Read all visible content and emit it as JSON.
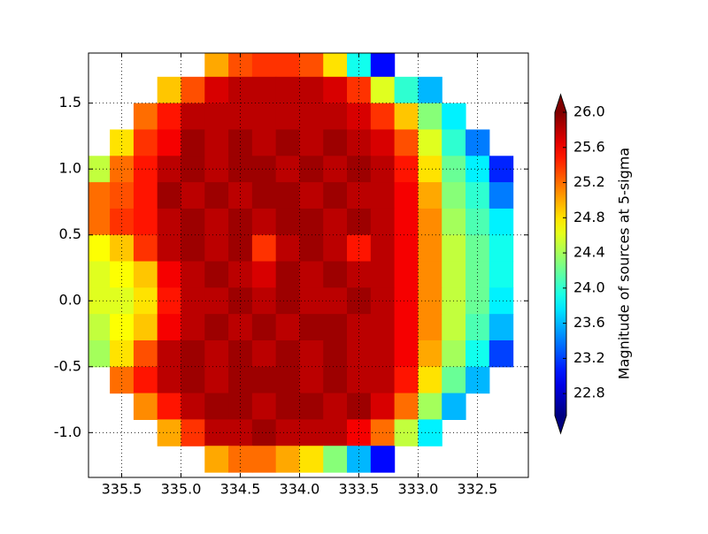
{
  "chart_data": {
    "type": "heatmap",
    "x": [
      335.7,
      335.5,
      335.3,
      335.1,
      334.9,
      334.7,
      334.5,
      334.3,
      334.1,
      333.9,
      333.7,
      333.5,
      333.3,
      333.1,
      332.9,
      332.7,
      332.5,
      332.3
    ],
    "y": [
      1.8,
      1.6,
      1.4,
      1.2,
      1.0,
      0.8,
      0.6,
      0.4,
      0.2,
      0.0,
      -0.2,
      -0.4,
      -0.6,
      -0.8,
      -1.0,
      -1.2
    ],
    "values": [
      [
        null,
        null,
        null,
        null,
        null,
        25.0,
        25.3,
        25.4,
        25.4,
        25.3,
        24.8,
        23.9,
        23.0,
        null,
        null,
        null,
        null,
        null
      ],
      [
        null,
        null,
        null,
        24.9,
        25.3,
        25.7,
        25.8,
        25.8,
        25.8,
        25.8,
        25.7,
        25.4,
        24.6,
        24.0,
        23.6,
        null,
        null,
        null
      ],
      [
        null,
        null,
        25.2,
        25.5,
        25.8,
        25.8,
        25.8,
        25.8,
        25.8,
        25.8,
        25.8,
        25.7,
        25.4,
        24.9,
        24.3,
        23.8,
        null,
        null
      ],
      [
        null,
        24.8,
        25.4,
        25.6,
        25.9,
        25.8,
        25.9,
        25.8,
        25.9,
        25.8,
        25.9,
        25.8,
        25.7,
        25.3,
        24.6,
        24.0,
        23.4,
        null
      ],
      [
        24.5,
        25.2,
        25.5,
        25.8,
        25.9,
        25.8,
        25.9,
        25.9,
        25.8,
        25.9,
        25.8,
        25.9,
        25.8,
        25.5,
        24.8,
        24.2,
        23.8,
        23.1
      ],
      [
        25.2,
        25.3,
        25.5,
        25.9,
        25.8,
        25.9,
        25.8,
        25.9,
        25.9,
        25.8,
        25.9,
        25.8,
        25.8,
        25.6,
        25.0,
        24.3,
        24.0,
        23.4
      ],
      [
        25.2,
        25.4,
        25.5,
        25.8,
        25.9,
        25.8,
        25.9,
        25.8,
        25.9,
        25.9,
        25.8,
        25.9,
        25.8,
        25.6,
        25.1,
        24.4,
        24.1,
        23.8
      ],
      [
        24.7,
        24.9,
        25.4,
        25.8,
        25.9,
        25.8,
        25.9,
        25.4,
        25.8,
        25.9,
        25.8,
        25.5,
        25.8,
        25.6,
        25.1,
        24.5,
        24.2,
        23.9
      ],
      [
        24.6,
        24.7,
        24.9,
        25.6,
        25.8,
        25.9,
        25.8,
        25.7,
        25.9,
        25.8,
        25.9,
        25.8,
        25.8,
        25.6,
        25.1,
        24.5,
        24.2,
        23.9
      ],
      [
        24.6,
        24.6,
        24.8,
        25.5,
        25.8,
        25.8,
        25.9,
        25.8,
        25.9,
        25.8,
        25.8,
        25.9,
        25.8,
        25.6,
        25.1,
        24.5,
        24.2,
        23.8
      ],
      [
        24.5,
        24.7,
        24.9,
        25.6,
        25.8,
        25.9,
        25.8,
        25.9,
        25.8,
        25.9,
        25.9,
        25.8,
        25.8,
        25.6,
        25.1,
        24.5,
        24.1,
        23.6
      ],
      [
        24.4,
        24.8,
        25.3,
        25.8,
        25.9,
        25.8,
        25.9,
        25.8,
        25.9,
        25.8,
        25.9,
        25.8,
        25.8,
        25.6,
        25.0,
        24.4,
        23.9,
        23.2
      ],
      [
        null,
        25.2,
        25.5,
        25.8,
        25.9,
        25.8,
        25.9,
        25.9,
        25.9,
        25.8,
        25.9,
        25.8,
        25.8,
        25.5,
        24.8,
        24.2,
        23.6,
        null
      ],
      [
        null,
        null,
        25.1,
        25.5,
        25.8,
        25.9,
        25.9,
        25.8,
        25.9,
        25.9,
        25.8,
        25.9,
        25.7,
        25.2,
        24.4,
        23.6,
        null,
        null
      ],
      [
        null,
        null,
        null,
        25.0,
        25.4,
        25.8,
        25.8,
        25.9,
        25.8,
        25.8,
        25.8,
        25.6,
        25.2,
        24.5,
        23.8,
        null,
        null,
        null
      ],
      [
        null,
        null,
        null,
        null,
        null,
        25.0,
        25.2,
        25.2,
        25.0,
        24.8,
        24.3,
        23.6,
        23.0,
        null,
        null,
        null,
        null,
        null
      ]
    ],
    "xlim": [
      335.78,
      332.07
    ],
    "xticks": [
      335.5,
      {
        "value": 335.0,
        "label": "335.0"
      },
      334.5,
      {
        "value": 334.0,
        "label": "334.0"
      },
      333.5,
      {
        "value": 333.0,
        "label": "333.0"
      },
      332.5
    ],
    "ylim": [
      -1.34,
      1.88
    ],
    "yticks": [
      {
        "value": -1.0,
        "label": "-1.0"
      },
      -0.5,
      {
        "value": 0.0,
        "label": "0.0"
      },
      0.5,
      {
        "value": 1.0,
        "label": "1.0"
      },
      1.5
    ],
    "grid": true,
    "colormap": "jet",
    "colorbar": {
      "label": "Magnitude of sources at 5-sigma",
      "lim": [
        22.55,
        26.0
      ],
      "extend": "both",
      "ticks": [
        {
          "value": 22.8,
          "label": "22.8"
        },
        {
          "value": 23.2,
          "label": "23.2"
        },
        {
          "value": 23.6,
          "label": "23.6"
        },
        {
          "value": 24.0,
          "label": "24.0"
        },
        {
          "value": 24.4,
          "label": "24.4"
        },
        {
          "value": 24.8,
          "label": "24.8"
        },
        {
          "value": 25.2,
          "label": "25.2"
        },
        {
          "value": 25.6,
          "label": "25.6"
        },
        {
          "value": 26.0,
          "label": "26.0"
        }
      ]
    }
  }
}
